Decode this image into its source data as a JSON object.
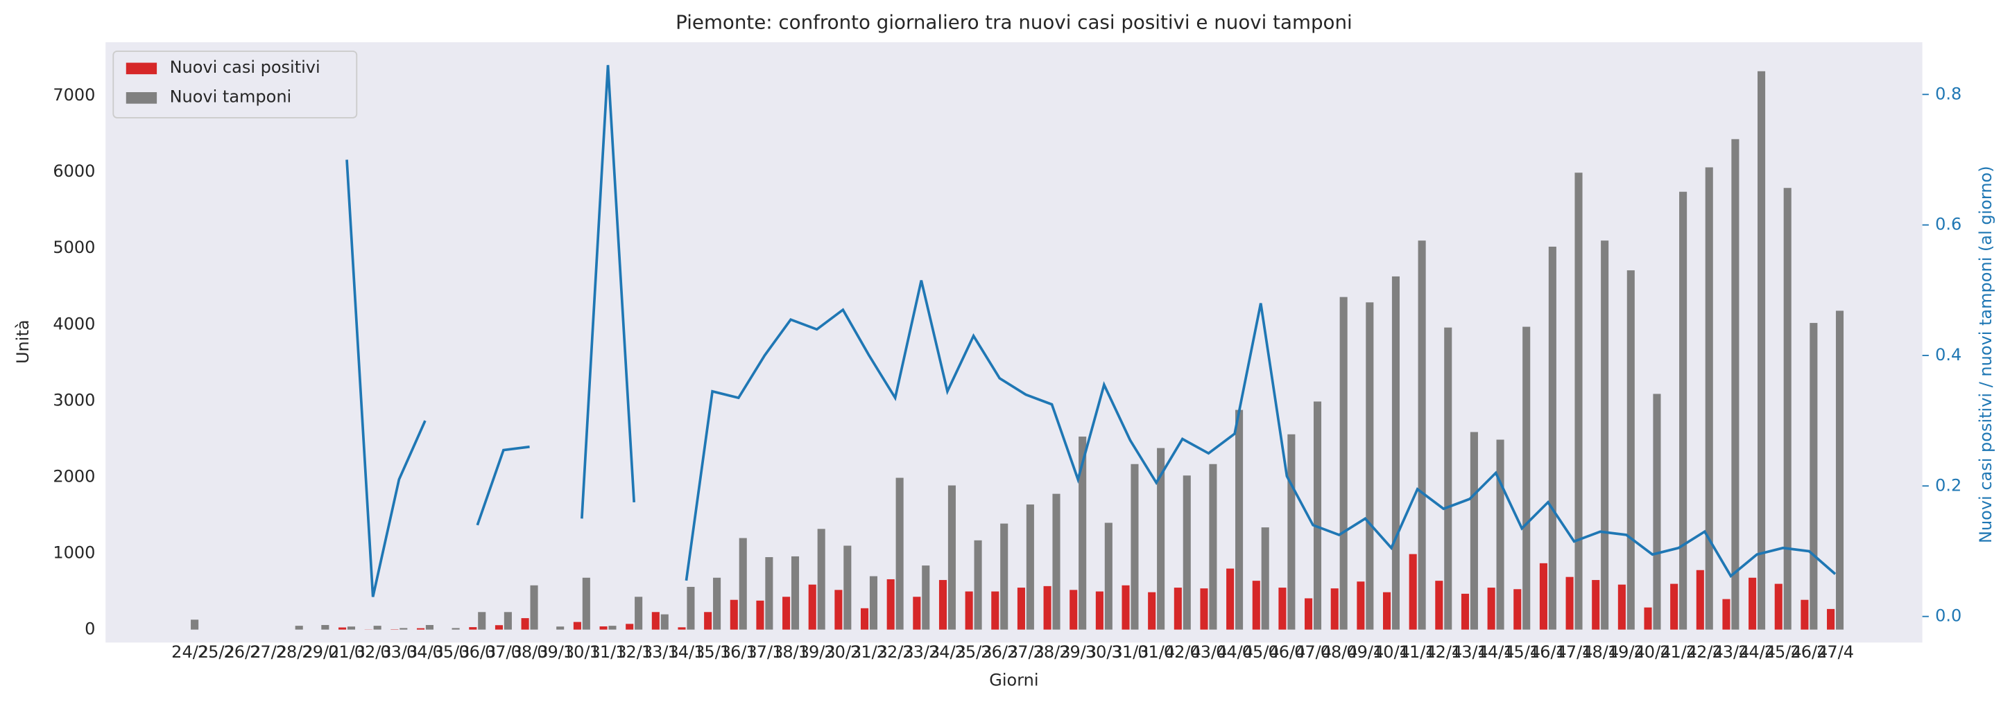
{
  "chart_data": {
    "type": "bar",
    "title": "Piemonte: confronto giornaliero tra nuovi casi positivi e nuovi tamponi",
    "x_label": "Giorni",
    "y_label": "Unità",
    "y2_label": "Nuovi casi positivi / nuovi tamponi (al giorno)",
    "categories": [
      "24/2",
      "25/2",
      "26/2",
      "27/2",
      "28/2",
      "29/2",
      "01/3",
      "02/3",
      "03/3",
      "04/3",
      "05/3",
      "06/3",
      "07/3",
      "08/3",
      "09/3",
      "10/3",
      "11/3",
      "12/3",
      "13/3",
      "14/3",
      "15/3",
      "16/3",
      "17/3",
      "18/3",
      "19/3",
      "20/3",
      "21/3",
      "22/3",
      "23/3",
      "24/3",
      "25/3",
      "26/3",
      "27/3",
      "28/3",
      "29/3",
      "30/3",
      "31/3",
      "01/4",
      "02/4",
      "03/4",
      "04/4",
      "05/4",
      "06/4",
      "07/4",
      "08/4",
      "09/4",
      "10/4",
      "11/4",
      "12/4",
      "13/4",
      "14/4",
      "15/4",
      "16/4",
      "17/4",
      "18/4",
      "19/4",
      "20/4",
      "21/4",
      "22/4",
      "23/4",
      "24/4",
      "25/4",
      "26/4",
      "27/4"
    ],
    "series": [
      {
        "name": "Nuovi casi positivi",
        "color": "#d62728",
        "values": [
          0,
          0,
          0,
          0,
          0,
          0,
          28,
          2,
          4,
          18,
          0,
          32,
          58,
          150,
          0,
          100,
          42,
          75,
          230,
          30,
          230,
          390,
          380,
          430,
          590,
          520,
          280,
          660,
          430,
          650,
          500,
          500,
          550,
          570,
          520,
          500,
          580,
          490,
          550,
          540,
          800,
          640,
          550,
          410,
          540,
          630,
          490,
          990,
          640,
          470,
          550,
          530,
          870,
          690,
          650,
          590,
          290,
          600,
          780,
          400,
          680,
          600,
          390,
          270
        ]
      },
      {
        "name": "Nuovi tamponi",
        "color": "#808080",
        "values": [
          130,
          0,
          0,
          0,
          50,
          60,
          40,
          50,
          20,
          60,
          20,
          230,
          230,
          580,
          40,
          680,
          50,
          430,
          200,
          560,
          680,
          1200,
          950,
          960,
          1320,
          1100,
          700,
          1990,
          840,
          1890,
          1170,
          1390,
          1640,
          1780,
          2530,
          1400,
          2170,
          2380,
          2020,
          2170,
          2880,
          1340,
          2560,
          2990,
          4360,
          4290,
          4630,
          5100,
          3960,
          2590,
          2490,
          3970,
          5020,
          5990,
          5100,
          4710,
          3090,
          5740,
          6060,
          6430,
          7320,
          5790,
          4020,
          4180
        ]
      },
      {
        "type": "line",
        "axis": "y2",
        "color": "#1f77b4",
        "values": [
          null,
          null,
          null,
          null,
          null,
          null,
          0.7,
          0.03,
          0.21,
          0.3,
          null,
          0.14,
          0.255,
          0.26,
          null,
          0.15,
          0.845,
          0.175,
          null,
          0.055,
          0.345,
          0.335,
          0.4,
          0.455,
          0.44,
          0.47,
          0.4,
          0.335,
          0.515,
          0.345,
          0.43,
          0.365,
          0.34,
          0.325,
          0.21,
          0.355,
          0.27,
          0.205,
          0.272,
          0.25,
          0.28,
          0.48,
          0.215,
          0.14,
          0.125,
          0.15,
          0.105,
          0.195,
          0.165,
          0.18,
          0.22,
          0.135,
          0.175,
          0.115,
          0.13,
          0.125,
          0.095,
          0.105,
          0.13,
          0.062,
          0.095,
          0.105,
          0.1,
          0.065
        ]
      }
    ],
    "ylim": [
      -170,
      7700
    ],
    "yticks": [
      0,
      1000,
      2000,
      3000,
      4000,
      5000,
      6000,
      7000
    ],
    "y2lim": [
      -0.04,
      0.88
    ],
    "y2ticks": [
      {
        "value": 0,
        "label": "0.0"
      },
      0.2,
      0.4,
      0.6,
      0.8
    ],
    "y2_color": "#1f77b4",
    "grid": false,
    "legend": "upper left",
    "background": "#eaeaf2"
  }
}
